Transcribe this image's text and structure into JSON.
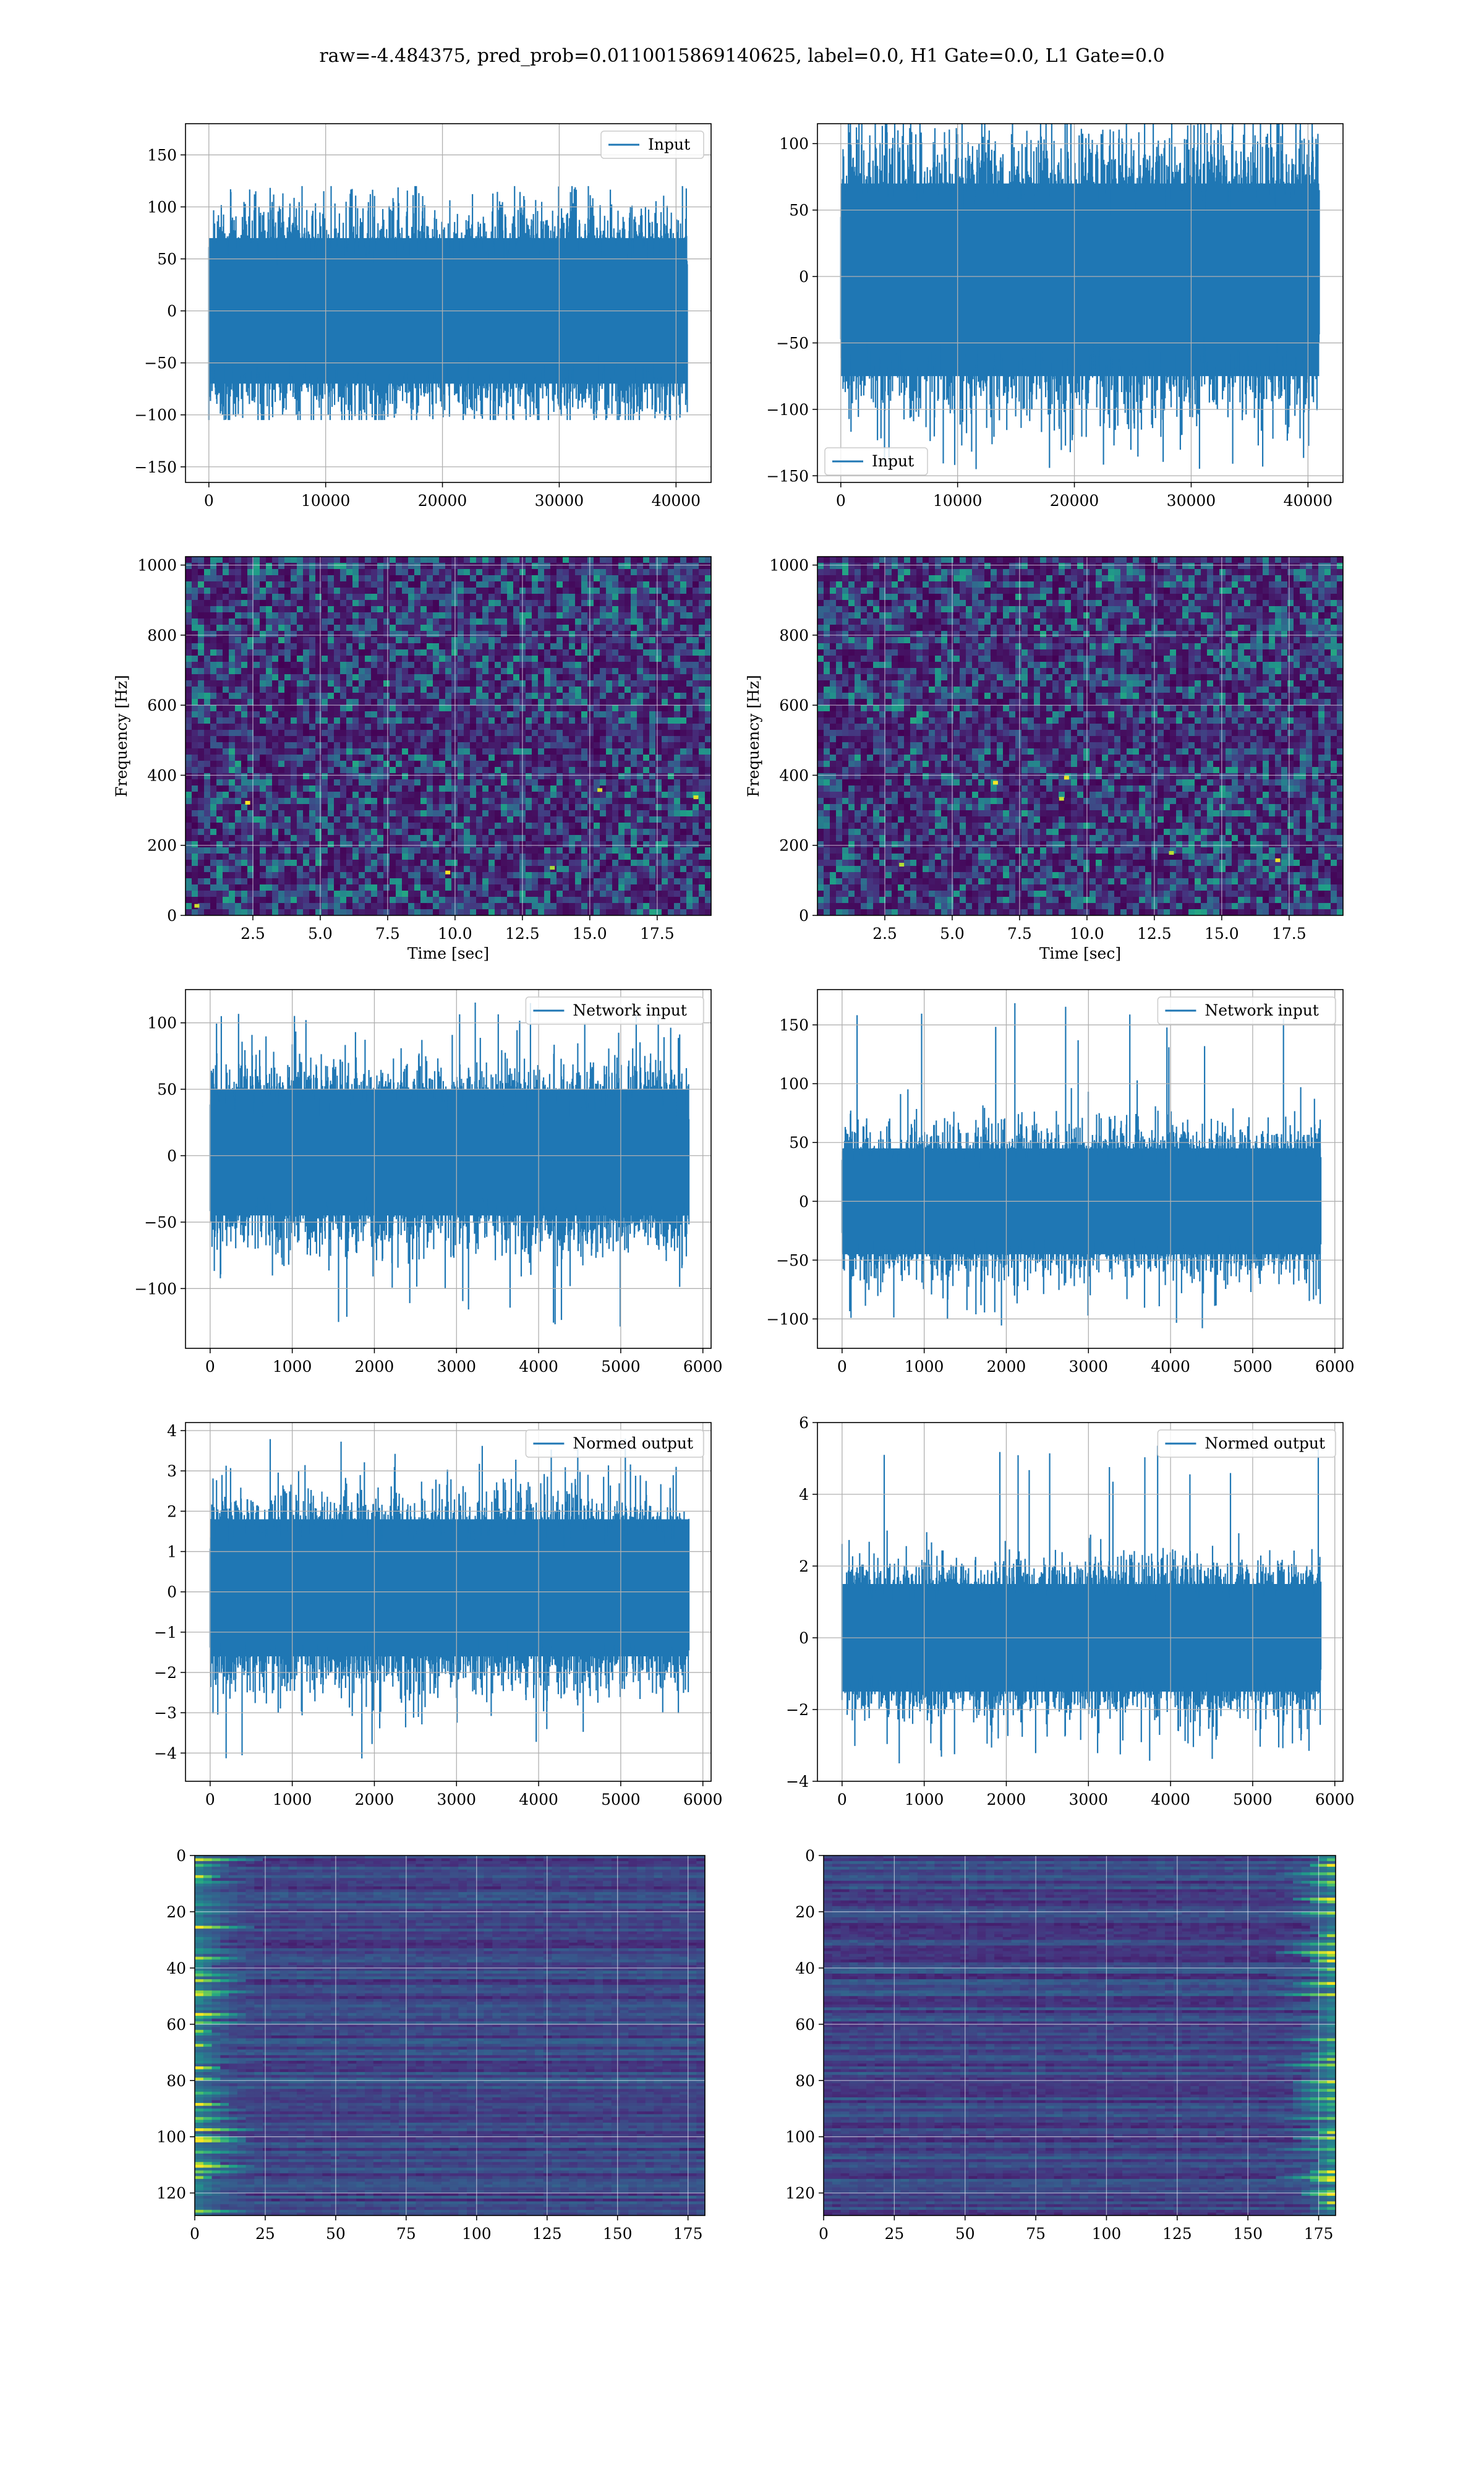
{
  "suptitle": "raw=-4.484375, pred_prob=0.0110015869140625, label=0.0, H1 Gate=0.0, L1 Gate=0.0",
  "colors": {
    "line": "#1f77b4",
    "grid": "#b0b0b0",
    "viridis": [
      "#440154",
      "#46327e",
      "#365c8d",
      "#277f8e",
      "#1fa187",
      "#4ac16d",
      "#a0da39",
      "#fde725"
    ]
  },
  "chart_data": [
    {
      "id": "r1c1",
      "type": "line",
      "xlim": [
        -2000,
        43000
      ],
      "ylim": [
        -165,
        180
      ],
      "xticks": [
        0,
        10000,
        20000,
        30000,
        40000
      ],
      "xticklabels": [
        "0",
        "10000",
        "20000",
        "30000",
        "40000"
      ],
      "yticks": [
        -150,
        -100,
        -50,
        0,
        50,
        100,
        150
      ],
      "yticklabels": [
        "−150",
        "−100",
        "−50",
        "0",
        "50",
        "100",
        "150"
      ],
      "series": [
        {
          "name": "Input",
          "x_range": [
            0,
            40960
          ],
          "amp": [
            -70,
            70
          ],
          "peak": [
            -105,
            120
          ]
        }
      ],
      "legend": "upper right",
      "grid": true
    },
    {
      "id": "r1c2",
      "type": "line",
      "xlim": [
        -2000,
        43000
      ],
      "ylim": [
        -155,
        115
      ],
      "xticks": [
        0,
        10000,
        20000,
        30000,
        40000
      ],
      "xticklabels": [
        "0",
        "10000",
        "20000",
        "30000",
        "40000"
      ],
      "yticks": [
        -150,
        -100,
        -50,
        0,
        50,
        100
      ],
      "yticklabels": [
        "−150",
        "−100",
        "−50",
        "0",
        "50",
        "100"
      ],
      "series": [
        {
          "name": "Input",
          "x_range": [
            0,
            40960
          ],
          "amp": [
            -75,
            70
          ],
          "peak": [
            -145,
            115
          ]
        }
      ],
      "legend": "lower left",
      "grid": true
    },
    {
      "id": "r2c1",
      "type": "heatmap",
      "xlim": [
        0,
        19.5
      ],
      "ylim": [
        0,
        1024
      ],
      "xticks": [
        2.5,
        5,
        7.5,
        10,
        12.5,
        15,
        17.5
      ],
      "xticklabels": [
        "2.5",
        "5.0",
        "7.5",
        "10.0",
        "12.5",
        "15.0",
        "17.5"
      ],
      "yticks": [
        0,
        200,
        400,
        600,
        800,
        1000
      ],
      "yticklabels": [
        "0",
        "200",
        "400",
        "600",
        "800",
        "1000"
      ],
      "xlabel": "Time [sec]",
      "ylabel": "Frequency [Hz]",
      "grid": true
    },
    {
      "id": "r2c2",
      "type": "heatmap",
      "xlim": [
        0,
        19.5
      ],
      "ylim": [
        0,
        1024
      ],
      "xticks": [
        2.5,
        5,
        7.5,
        10,
        12.5,
        15,
        17.5
      ],
      "xticklabels": [
        "2.5",
        "5.0",
        "7.5",
        "10.0",
        "12.5",
        "15.0",
        "17.5"
      ],
      "yticks": [
        0,
        200,
        400,
        600,
        800,
        1000
      ],
      "yticklabels": [
        "0",
        "200",
        "400",
        "600",
        "800",
        "1000"
      ],
      "xlabel": "Time [sec]",
      "ylabel": "Frequency [Hz]",
      "grid": true
    },
    {
      "id": "r3c1",
      "type": "line",
      "xlim": [
        -300,
        6100
      ],
      "ylim": [
        -145,
        125
      ],
      "xticks": [
        0,
        1000,
        2000,
        3000,
        4000,
        5000,
        6000
      ],
      "xticklabels": [
        "0",
        "1000",
        "2000",
        "3000",
        "4000",
        "5000",
        "6000"
      ],
      "yticks": [
        -100,
        -50,
        0,
        50,
        100
      ],
      "yticklabels": [
        "−100",
        "−50",
        "0",
        "50",
        "100"
      ],
      "series": [
        {
          "name": "Network input",
          "x_range": [
            0,
            5830
          ],
          "amp": [
            -45,
            50
          ],
          "peak": [
            -130,
            118
          ]
        }
      ],
      "legend": "upper right",
      "grid": true
    },
    {
      "id": "r3c2",
      "type": "line",
      "xlim": [
        -300,
        6100
      ],
      "ylim": [
        -125,
        180
      ],
      "xticks": [
        0,
        1000,
        2000,
        3000,
        4000,
        5000,
        6000
      ],
      "xticklabels": [
        "0",
        "1000",
        "2000",
        "3000",
        "4000",
        "5000",
        "6000"
      ],
      "yticks": [
        -100,
        -50,
        0,
        50,
        100,
        150
      ],
      "yticklabels": [
        "−100",
        "−50",
        "0",
        "50",
        "100",
        "150"
      ],
      "series": [
        {
          "name": "Network input",
          "x_range": [
            0,
            5830
          ],
          "amp": [
            -45,
            45
          ],
          "peak": [
            -110,
            172
          ]
        }
      ],
      "legend": "upper right",
      "grid": true
    },
    {
      "id": "r4c1",
      "type": "line",
      "xlim": [
        -300,
        6100
      ],
      "ylim": [
        -4.7,
        4.2
      ],
      "xticks": [
        0,
        1000,
        2000,
        3000,
        4000,
        5000,
        6000
      ],
      "xticklabels": [
        "0",
        "1000",
        "2000",
        "3000",
        "4000",
        "5000",
        "6000"
      ],
      "yticks": [
        -4,
        -3,
        -2,
        -1,
        0,
        1,
        2,
        3,
        4
      ],
      "yticklabels": [
        "−4",
        "−3",
        "−2",
        "−1",
        "0",
        "1",
        "2",
        "3",
        "4"
      ],
      "series": [
        {
          "name": "Normed output",
          "x_range": [
            0,
            5830
          ],
          "amp": [
            -1.6,
            1.8
          ],
          "peak": [
            -4.2,
            3.8
          ]
        }
      ],
      "legend": "upper right",
      "grid": true
    },
    {
      "id": "r4c2",
      "type": "line",
      "xlim": [
        -300,
        6100
      ],
      "ylim": [
        -4,
        6
      ],
      "xticks": [
        0,
        1000,
        2000,
        3000,
        4000,
        5000,
        6000
      ],
      "xticklabels": [
        "0",
        "1000",
        "2000",
        "3000",
        "4000",
        "5000",
        "6000"
      ],
      "yticks": [
        -4,
        -2,
        0,
        2,
        4,
        6
      ],
      "yticklabels": [
        "−4",
        "−2",
        "0",
        "2",
        "4",
        "6"
      ],
      "series": [
        {
          "name": "Normed output",
          "x_range": [
            0,
            5830
          ],
          "amp": [
            -1.5,
            1.5
          ],
          "peak": [
            -3.5,
            5.6
          ]
        }
      ],
      "legend": "upper right",
      "grid": true
    },
    {
      "id": "r5c1",
      "type": "heatmap",
      "xlim": [
        0,
        181
      ],
      "ylim": [
        128,
        0
      ],
      "xticks": [
        0,
        25,
        50,
        75,
        100,
        125,
        150,
        175
      ],
      "xticklabels": [
        "0",
        "25",
        "50",
        "75",
        "100",
        "125",
        "150",
        "175"
      ],
      "yticks": [
        0,
        20,
        40,
        60,
        80,
        100,
        120
      ],
      "yticklabels": [
        "0",
        "20",
        "40",
        "60",
        "80",
        "100",
        "120"
      ],
      "hot_side": "left",
      "grid": true
    },
    {
      "id": "r5c2",
      "type": "heatmap",
      "xlim": [
        0,
        181
      ],
      "ylim": [
        128,
        0
      ],
      "xticks": [
        0,
        25,
        50,
        75,
        100,
        125,
        150,
        175
      ],
      "xticklabels": [
        "0",
        "25",
        "50",
        "75",
        "100",
        "125",
        "150",
        "175"
      ],
      "yticks": [
        0,
        20,
        40,
        60,
        80,
        100,
        120
      ],
      "yticklabels": [
        "0",
        "20",
        "40",
        "60",
        "80",
        "100",
        "120"
      ],
      "hot_side": "right",
      "grid": true
    }
  ]
}
